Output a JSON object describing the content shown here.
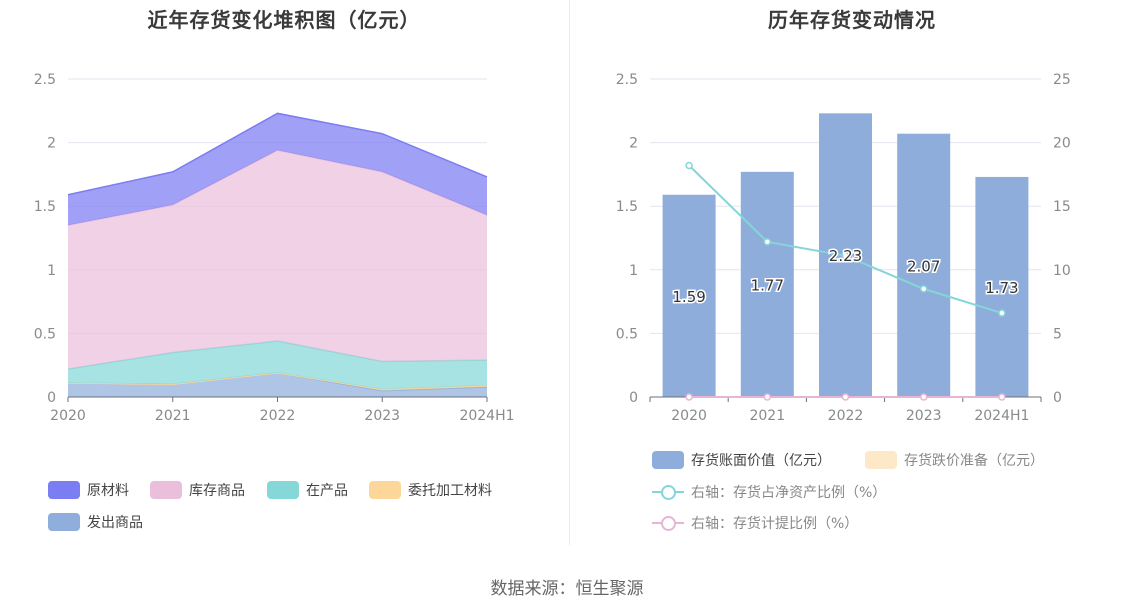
{
  "left_chart": {
    "title": "近年存货变化堆积图（亿元）",
    "chart_data": {
      "type": "area",
      "stacked": true,
      "categories": [
        "2020",
        "2021",
        "2022",
        "2023",
        "2024H1"
      ],
      "ylim": [
        0,
        2.5
      ],
      "yticks": [
        "0",
        "0.5",
        "1",
        "1.5",
        "2",
        "2.5"
      ],
      "series": [
        {
          "name": "发出商品",
          "color": "#90aedc",
          "values": [
            0.11,
            0.1,
            0.19,
            0.05,
            0.08
          ]
        },
        {
          "name": "委托加工材料",
          "color": "#fdd79a",
          "values": [
            0.0,
            0.0,
            0.0,
            0.01,
            0.01
          ]
        },
        {
          "name": "在产品",
          "color": "#86d8d8",
          "values": [
            0.11,
            0.25,
            0.25,
            0.22,
            0.2
          ]
        },
        {
          "name": "库存商品",
          "color": "#ebbfdc",
          "values": [
            1.13,
            1.16,
            1.5,
            1.49,
            1.14
          ]
        },
        {
          "name": "原材料",
          "color": "#7b7df2",
          "values": [
            0.24,
            0.26,
            0.29,
            0.3,
            0.3
          ]
        }
      ]
    },
    "legend": [
      {
        "label": "原材料",
        "color": "#7b7df2"
      },
      {
        "label": "库存商品",
        "color": "#ebbfdc"
      },
      {
        "label": "在产品",
        "color": "#86d8d8"
      },
      {
        "label": "委托加工材料",
        "color": "#fdd79a"
      },
      {
        "label": "发出商品",
        "color": "#90aedc"
      }
    ]
  },
  "right_chart": {
    "title": "历年存货变动情况",
    "chart_data": {
      "type": "bar",
      "categories": [
        "2020",
        "2021",
        "2022",
        "2023",
        "2024H1"
      ],
      "ylim": [
        0,
        2.5
      ],
      "yticks": [
        "0",
        "0.5",
        "1",
        "1.5",
        "2",
        "2.5"
      ],
      "y2lim": [
        0,
        25
      ],
      "y2ticks": [
        "0",
        "5",
        "10",
        "15",
        "20",
        "25"
      ],
      "bars": {
        "name": "存货账面价值（亿元）",
        "color": "#8eaddb",
        "values": [
          1.59,
          1.77,
          2.23,
          2.07,
          1.73
        ],
        "labels": [
          "1.59",
          "1.77",
          "2.23",
          "2.07",
          "1.73"
        ]
      },
      "bars2": {
        "name": "存货跌价准备（亿元）",
        "color": "#fde8c8",
        "values": [
          0,
          0,
          0,
          0,
          0
        ]
      },
      "lines": [
        {
          "name": "右轴：存货占净资产比例（%）",
          "color": "#86d5d8",
          "values": [
            18.2,
            12.2,
            11.1,
            8.5,
            6.6
          ]
        },
        {
          "name": "右轴：存货计提比例（%）",
          "color": "#e8b4d6",
          "values": [
            0,
            0,
            0,
            0,
            0
          ]
        }
      ]
    },
    "legend": [
      {
        "label": "存货账面价值（亿元）",
        "color": "#8eaddb",
        "kind": "box",
        "text_color": "#444"
      },
      {
        "label": "存货跌价准备（亿元）",
        "color": "#fde8c8",
        "kind": "box",
        "text_color": "#888"
      },
      {
        "label": "右轴：存货占净资产比例（%）",
        "color": "#86d5d8",
        "kind": "line",
        "text_color": "#888"
      },
      {
        "label": "右轴：存货计提比例（%）",
        "color": "#e8b4d6",
        "kind": "line",
        "text_color": "#888"
      }
    ]
  },
  "footer": {
    "source": "数据来源：恒生聚源"
  }
}
